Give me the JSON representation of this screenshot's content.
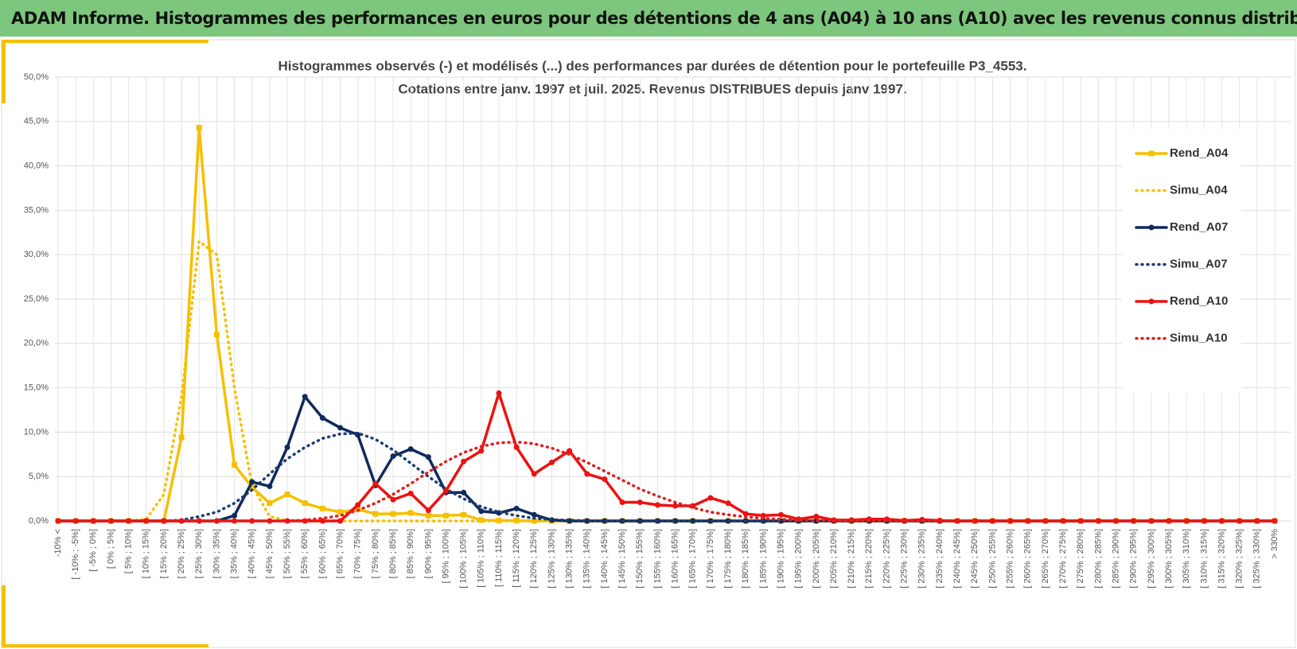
{
  "header": {
    "title": "ADAM Informe. Histogrammes des performances en euros pour des détentions de 4 ans (A04) à 10 ans (A10) avec les revenus connus distribués"
  },
  "chart_data": {
    "type": "line",
    "title": "Histogrammes observés (-) et modélisés (...) des performances par durées de détention pour  le portefeuille P3_4553.",
    "subtitle": "Cotations entre janv. 1997 et juil. 2025. Revenus DISTRIBUES depuis janv 1997.",
    "categories": [
      "-10% <",
      "[ -10% ; -5%]",
      "[ -5% ; 0%]",
      "[ 0% ; 5%]",
      "[ 5% ; 10%]",
      "[ 10% ; 15%]",
      "[ 15% ; 20%]",
      "[ 20% ; 25%]",
      "[ 25% ; 30%]",
      "[ 30% ; 35%]",
      "[ 35% ; 40%]",
      "[ 40% ; 45%]",
      "[ 45% ; 50%]",
      "[ 50% ; 55%]",
      "[ 55% ; 60%]",
      "[ 60% ; 65%]",
      "[ 65% ; 70%]",
      "[ 70% ; 75%]",
      "[ 75% ; 80%]",
      "[ 80% ; 85%]",
      "[ 85% ; 90%]",
      "[ 90% ; 95%]",
      "[ 95% ; 100%]",
      "[ 100% ; 105%]",
      "[ 105% ; 110%]",
      "[ 110% ; 115%]",
      "[ 115% ; 120%]",
      "[ 120% ; 125%]",
      "[ 125% ; 130%]",
      "[ 130% ; 135%]",
      "[ 135% ; 140%]",
      "[ 140% ; 145%]",
      "[ 145% ; 150%]",
      "[ 150% ; 155%]",
      "[ 155% ; 160%]",
      "[ 160% ; 165%]",
      "[ 165% ; 170%]",
      "[ 170% ; 175%]",
      "[ 175% ; 180%]",
      "[ 180% ; 185%]",
      "[ 185% ; 190%]",
      "[ 190% ; 195%]",
      "[ 195% ; 200%]",
      "[ 200% ; 205%]",
      "[ 205% ; 210%]",
      "[ 210% ; 215%]",
      "[ 215% ; 220%]",
      "[ 220% ; 225%]",
      "[ 225% ; 230%]",
      "[ 230% ; 235%]",
      "[ 235% ; 240%]",
      "[ 240% ; 245%]",
      "[ 245% ; 250%]",
      "[ 250% ; 255%]",
      "[ 255% ; 260%]",
      "[ 260% ; 265%]",
      "[ 265% ; 270%]",
      "[ 270% ; 275%]",
      "[ 275% ; 280%]",
      "[ 280% ; 285%]",
      "[ 285% ; 290%]",
      "[ 290% ; 295%]",
      "[ 295% ; 300%]",
      "[ 300% ; 305%]",
      "[ 305% ; 310%]",
      "[ 310% ; 315%]",
      "[ 315% ; 320%]",
      "[ 320% ; 325%]",
      "[ 325% ; 330%]",
      "> 330%"
    ],
    "series": [
      {
        "name": "Rend_A04",
        "color": "#f5c000",
        "dash": "solid",
        "marker": "square",
        "values": [
          0,
          0,
          0,
          0,
          0,
          0,
          0,
          9.4,
          44.3,
          21,
          6.3,
          3.8,
          2.0,
          3.0,
          2.0,
          1.4,
          1.0,
          1.3,
          0.8,
          0.8,
          0.9,
          0.6,
          0.6,
          0.7,
          0.1,
          0.05,
          0.05,
          0,
          0,
          0,
          0,
          0,
          0,
          0,
          0,
          0,
          0,
          0,
          0,
          0,
          0,
          0,
          0,
          0,
          0,
          0,
          0,
          0,
          0,
          0,
          0,
          0,
          0,
          0,
          0,
          0,
          0,
          0,
          0,
          0,
          0,
          0,
          0,
          0,
          0,
          0,
          0,
          0,
          0,
          0
        ]
      },
      {
        "name": "Simu_A04",
        "color": "#f5c000",
        "dash": "dotted",
        "marker": "none",
        "values": [
          0,
          0,
          0,
          0,
          0,
          0.2,
          3,
          14,
          31.5,
          30,
          15,
          4,
          0.5,
          0.05,
          0,
          0,
          0,
          0,
          0,
          0,
          0,
          0,
          0,
          0,
          0,
          0,
          0,
          0,
          0,
          0,
          0,
          0,
          0,
          0,
          0,
          0,
          0,
          0,
          0,
          0,
          0,
          0,
          0,
          0,
          0,
          0,
          0,
          0,
          0,
          0,
          0,
          0,
          0,
          0,
          0,
          0,
          0,
          0,
          0,
          0,
          0,
          0,
          0,
          0,
          0,
          0,
          0,
          0,
          0,
          0
        ]
      },
      {
        "name": "Rend_A07",
        "color": "#0f2a5c",
        "dash": "solid",
        "marker": "circle",
        "values": [
          0,
          0,
          0,
          0,
          0,
          0,
          0,
          0,
          0,
          0,
          0.6,
          4.4,
          3.9,
          8.3,
          14.0,
          11.6,
          10.5,
          9.7,
          4.0,
          7.3,
          8.1,
          7.2,
          3.2,
          3.2,
          1.1,
          0.9,
          1.4,
          0.7,
          0.1,
          0,
          0,
          0,
          0,
          0,
          0,
          0,
          0,
          0,
          0,
          0,
          0,
          0,
          0,
          0,
          0,
          0,
          0,
          0,
          0,
          0,
          0,
          0,
          0,
          0,
          0,
          0,
          0,
          0,
          0,
          0,
          0,
          0,
          0,
          0,
          0,
          0,
          0,
          0,
          0,
          0
        ]
      },
      {
        "name": "Simu_A07",
        "color": "#1f3d73",
        "dash": "dotted",
        "marker": "none",
        "values": [
          0,
          0,
          0,
          0,
          0,
          0,
          0,
          0.1,
          0.5,
          1.0,
          2.0,
          3.5,
          5.3,
          7.0,
          8.3,
          9.3,
          9.8,
          9.9,
          9.2,
          8.0,
          6.5,
          5.0,
          3.6,
          2.5,
          1.6,
          1.0,
          0.6,
          0.3,
          0.15,
          0.08,
          0.04,
          0,
          0,
          0,
          0,
          0,
          0,
          0,
          0,
          0,
          0,
          0,
          0,
          0,
          0,
          0,
          0,
          0,
          0,
          0,
          0,
          0,
          0,
          0,
          0,
          0,
          0,
          0,
          0,
          0,
          0,
          0,
          0,
          0,
          0,
          0,
          0,
          0,
          0,
          0
        ]
      },
      {
        "name": "Rend_A10",
        "color": "#ee1111",
        "dash": "solid",
        "marker": "circle",
        "values": [
          0,
          0,
          0,
          0,
          0,
          0,
          0,
          0,
          0,
          0,
          0,
          0,
          0,
          0,
          0,
          0,
          0,
          1.8,
          4.2,
          2.4,
          3.1,
          1.2,
          3.4,
          6.7,
          7.9,
          14.4,
          8.3,
          5.3,
          6.6,
          7.9,
          5.3,
          4.7,
          2.1,
          2.1,
          1.8,
          1.7,
          1.7,
          2.6,
          2.0,
          0.8,
          0.6,
          0.7,
          0.2,
          0.5,
          0.1,
          0.1,
          0.2,
          0.2,
          0.05,
          0.15,
          0.05,
          0,
          0,
          0,
          0,
          0,
          0,
          0,
          0,
          0,
          0,
          0,
          0,
          0,
          0,
          0,
          0,
          0,
          0,
          0
        ]
      },
      {
        "name": "Simu_A10",
        "color": "#e02020",
        "dash": "dotted",
        "marker": "none",
        "values": [
          0,
          0,
          0,
          0,
          0,
          0,
          0,
          0,
          0,
          0,
          0,
          0,
          0,
          0,
          0.1,
          0.3,
          0.6,
          1.2,
          2.0,
          3.0,
          4.2,
          5.5,
          6.7,
          7.7,
          8.4,
          8.8,
          8.9,
          8.7,
          8.2,
          7.5,
          6.6,
          5.6,
          4.6,
          3.6,
          2.8,
          2.1,
          1.5,
          1.0,
          0.7,
          0.45,
          0.3,
          0.18,
          0.1,
          0.05,
          0,
          0,
          0,
          0,
          0,
          0,
          0,
          0,
          0,
          0,
          0,
          0,
          0,
          0,
          0,
          0,
          0,
          0,
          0,
          0,
          0,
          0,
          0,
          0,
          0,
          0
        ]
      }
    ],
    "ylim": [
      0,
      50
    ],
    "yticks": [
      {
        "value": 0,
        "label": "0,0%"
      },
      {
        "value": 5,
        "label": "5,0%"
      },
      {
        "value": 10,
        "label": "10,0%"
      },
      {
        "value": 15,
        "label": "15,0%"
      },
      {
        "value": 20,
        "label": "20,0%"
      },
      {
        "value": 25,
        "label": "25,0%"
      },
      {
        "value": 30,
        "label": "30,0%"
      },
      {
        "value": 35,
        "label": "35,0%"
      },
      {
        "value": 40,
        "label": "40,0%"
      },
      {
        "value": 45,
        "label": "45,0%"
      },
      {
        "value": 50,
        "label": "50,0%"
      }
    ],
    "grid": true,
    "legend": "right"
  }
}
